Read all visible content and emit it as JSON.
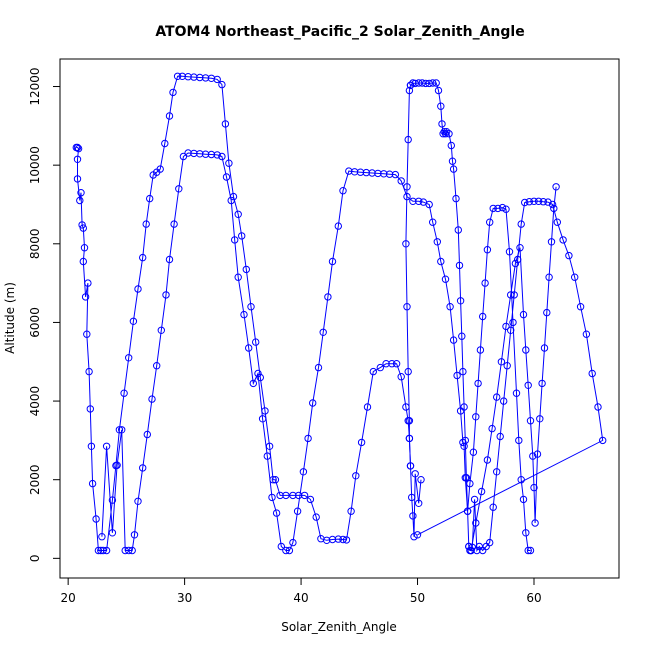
{
  "chart_data": {
    "type": "line",
    "title": "ATOM4 Northeast_Pacific_2 Solar_Zenith_Angle",
    "xlabel": "Solar_Zenith_Angle",
    "ylabel": "Altitude (m)",
    "xlim": [
      19.3,
      67.3
    ],
    "ylim": [
      -500,
      12700
    ],
    "xticks": [
      20,
      30,
      40,
      50,
      60
    ],
    "yticks": [
      0,
      2000,
      4000,
      6000,
      8000,
      10000,
      12000
    ],
    "grid": false,
    "colors": {
      "series": "#0000ff",
      "frame": "#000000"
    },
    "series": [
      {
        "values": [
          [
            20.7,
            10450
          ],
          [
            20.8,
            10450
          ],
          [
            20.9,
            10420
          ],
          [
            20.8,
            10150
          ],
          [
            20.8,
            9650
          ],
          [
            21.0,
            9100
          ],
          [
            21.1,
            9300
          ],
          [
            21.2,
            8480
          ],
          [
            21.3,
            8400
          ],
          [
            21.4,
            7900
          ],
          [
            21.3,
            7550
          ],
          [
            21.5,
            6650
          ],
          [
            21.7,
            7000
          ],
          [
            21.6,
            5700
          ],
          [
            21.8,
            4750
          ],
          [
            21.9,
            3800
          ],
          [
            22.0,
            2850
          ],
          [
            22.1,
            1900
          ],
          [
            22.4,
            1000
          ],
          [
            22.6,
            200
          ],
          [
            22.8,
            200
          ],
          [
            23.0,
            200
          ],
          [
            23.3,
            200
          ],
          [
            23.8,
            1480
          ],
          [
            24.1,
            2360
          ],
          [
            24.4,
            3270
          ],
          [
            24.8,
            4200
          ],
          [
            25.2,
            5100
          ],
          [
            25.6,
            6030
          ],
          [
            26.0,
            6850
          ],
          [
            26.4,
            7650
          ],
          [
            26.7,
            8500
          ],
          [
            27.0,
            9150
          ],
          [
            27.3,
            9750
          ],
          [
            27.6,
            9820
          ],
          [
            27.9,
            9900
          ],
          [
            28.3,
            10550
          ],
          [
            28.7,
            11250
          ],
          [
            29.0,
            11850
          ],
          [
            29.4,
            12260
          ],
          [
            29.8,
            12260
          ],
          [
            30.3,
            12250
          ],
          [
            30.8,
            12240
          ],
          [
            31.3,
            12230
          ],
          [
            31.8,
            12220
          ],
          [
            32.3,
            12210
          ],
          [
            32.8,
            12180
          ],
          [
            33.2,
            12050
          ],
          [
            33.5,
            11050
          ],
          [
            33.8,
            10050
          ],
          [
            34.2,
            9200
          ],
          [
            34.6,
            8750
          ],
          [
            34.9,
            8200
          ],
          [
            35.3,
            7350
          ],
          [
            35.7,
            6400
          ],
          [
            36.1,
            5500
          ],
          [
            36.5,
            4600
          ],
          [
            36.9,
            3750
          ],
          [
            37.3,
            2850
          ],
          [
            37.6,
            2000
          ],
          [
            37.8,
            2000
          ],
          [
            38.2,
            1600
          ],
          [
            38.7,
            1600
          ],
          [
            39.3,
            1600
          ],
          [
            39.8,
            1600
          ],
          [
            40.3,
            1600
          ],
          [
            40.8,
            1500
          ],
          [
            41.3,
            1050
          ],
          [
            41.7,
            500
          ],
          [
            42.2,
            460
          ],
          [
            42.7,
            480
          ],
          [
            43.2,
            490
          ],
          [
            43.6,
            480
          ],
          [
            43.9,
            470
          ],
          [
            44.3,
            1200
          ],
          [
            44.7,
            2100
          ],
          [
            45.2,
            2950
          ],
          [
            45.7,
            3850
          ],
          [
            46.2,
            4750
          ],
          [
            46.8,
            4850
          ],
          [
            47.3,
            4950
          ],
          [
            47.8,
            4950
          ],
          [
            48.2,
            4950
          ],
          [
            48.6,
            4620
          ],
          [
            49.0,
            3850
          ],
          [
            49.2,
            3500
          ],
          [
            49.3,
            3050
          ],
          [
            49.4,
            2350
          ],
          [
            49.5,
            1550
          ],
          [
            49.6,
            1080
          ],
          [
            49.7,
            550
          ],
          [
            49.8,
            2150
          ],
          [
            50.1,
            1400
          ],
          [
            50.3,
            2000
          ]
        ]
      },
      {
        "values": [
          [
            22.9,
            550
          ],
          [
            23.3,
            2850
          ],
          [
            23.8,
            650
          ],
          [
            24.2,
            2370
          ],
          [
            24.6,
            3270
          ],
          [
            24.9,
            200
          ],
          [
            25.2,
            200
          ],
          [
            25.5,
            200
          ],
          [
            25.7,
            600
          ],
          [
            26.0,
            1450
          ],
          [
            26.4,
            2300
          ],
          [
            26.8,
            3150
          ],
          [
            27.2,
            4050
          ],
          [
            27.6,
            4900
          ],
          [
            28.0,
            5800
          ],
          [
            28.4,
            6700
          ],
          [
            28.7,
            7600
          ],
          [
            29.1,
            8500
          ],
          [
            29.5,
            9400
          ],
          [
            29.9,
            10220
          ],
          [
            30.3,
            10310
          ],
          [
            30.8,
            10300
          ],
          [
            31.3,
            10290
          ],
          [
            31.8,
            10280
          ],
          [
            32.3,
            10270
          ],
          [
            32.8,
            10260
          ],
          [
            33.2,
            10220
          ],
          [
            33.6,
            9700
          ],
          [
            34.0,
            9100
          ],
          [
            34.3,
            8100
          ],
          [
            34.6,
            7150
          ],
          [
            35.1,
            6200
          ],
          [
            35.5,
            5350
          ],
          [
            35.9,
            4450
          ],
          [
            36.3,
            4700
          ],
          [
            36.7,
            3550
          ],
          [
            37.1,
            2600
          ],
          [
            37.5,
            1550
          ],
          [
            37.9,
            1150
          ],
          [
            38.3,
            300
          ],
          [
            38.7,
            200
          ],
          [
            39.0,
            200
          ],
          [
            39.3,
            400
          ],
          [
            39.7,
            1200
          ],
          [
            40.2,
            2200
          ],
          [
            40.6,
            3050
          ],
          [
            41.0,
            3950
          ],
          [
            41.5,
            4850
          ],
          [
            41.9,
            5750
          ],
          [
            42.3,
            6650
          ],
          [
            42.7,
            7550
          ],
          [
            43.2,
            8450
          ],
          [
            43.6,
            9350
          ],
          [
            44.1,
            9850
          ],
          [
            44.6,
            9830
          ],
          [
            45.1,
            9820
          ],
          [
            45.6,
            9810
          ],
          [
            46.1,
            9800
          ],
          [
            46.6,
            9790
          ],
          [
            47.1,
            9780
          ],
          [
            47.6,
            9770
          ],
          [
            48.1,
            9760
          ],
          [
            48.6,
            9600
          ],
          [
            49.1,
            9200
          ],
          [
            49.6,
            9080
          ],
          [
            50.1,
            9080
          ],
          [
            50.5,
            9060
          ],
          [
            51.0,
            9000
          ],
          [
            51.3,
            8550
          ],
          [
            51.7,
            8050
          ],
          [
            52.0,
            7550
          ],
          [
            52.4,
            7100
          ],
          [
            52.8,
            6400
          ],
          [
            53.1,
            5550
          ],
          [
            53.4,
            4650
          ],
          [
            53.7,
            3750
          ],
          [
            53.9,
            2950
          ],
          [
            54.0,
            2850
          ],
          [
            54.1,
            2050
          ],
          [
            54.3,
            1200
          ],
          [
            54.5,
            1900
          ],
          [
            54.8,
            2700
          ],
          [
            55.0,
            3600
          ],
          [
            55.2,
            4450
          ],
          [
            55.4,
            5300
          ],
          [
            55.6,
            6150
          ],
          [
            55.8,
            7000
          ],
          [
            56.0,
            7850
          ],
          [
            56.2,
            8550
          ],
          [
            56.5,
            8900
          ],
          [
            56.9,
            8900
          ],
          [
            57.3,
            8920
          ],
          [
            57.6,
            8880
          ],
          [
            57.9,
            7800
          ],
          [
            58.2,
            6000
          ],
          [
            58.5,
            4200
          ],
          [
            58.7,
            3000
          ],
          [
            58.9,
            2000
          ],
          [
            59.1,
            1500
          ],
          [
            59.3,
            650
          ],
          [
            59.5,
            200
          ],
          [
            59.7,
            200
          ]
        ]
      },
      {
        "values": [
          [
            49.4,
            12030
          ],
          [
            49.6,
            12090
          ],
          [
            49.8,
            12080
          ],
          [
            50.1,
            12090
          ],
          [
            50.4,
            12090
          ],
          [
            50.7,
            12080
          ],
          [
            51.0,
            12080
          ],
          [
            51.3,
            12090
          ],
          [
            51.6,
            12090
          ],
          [
            51.8,
            11900
          ],
          [
            52.0,
            11500
          ],
          [
            52.1,
            11050
          ],
          [
            52.2,
            10800
          ],
          [
            52.3,
            10850
          ],
          [
            52.4,
            10800
          ],
          [
            52.5,
            10850
          ],
          [
            52.7,
            10800
          ],
          [
            52.9,
            10500
          ],
          [
            53.0,
            10100
          ],
          [
            53.1,
            9900
          ],
          [
            53.3,
            9150
          ],
          [
            53.5,
            8350
          ],
          [
            53.6,
            7450
          ],
          [
            53.7,
            6550
          ],
          [
            53.8,
            5650
          ],
          [
            53.9,
            4750
          ],
          [
            54.0,
            3850
          ],
          [
            54.1,
            3000
          ],
          [
            54.2,
            2050
          ],
          [
            54.3,
            1200
          ],
          [
            54.4,
            300
          ],
          [
            54.5,
            200
          ],
          [
            54.6,
            200
          ],
          [
            54.7,
            280
          ],
          [
            54.9,
            1500
          ],
          [
            55.1,
            200
          ],
          [
            55.3,
            300
          ],
          [
            55.6,
            200
          ],
          [
            55.9,
            300
          ],
          [
            56.2,
            400
          ],
          [
            56.5,
            1300
          ],
          [
            56.8,
            2200
          ],
          [
            57.1,
            3100
          ],
          [
            57.4,
            4000
          ],
          [
            57.7,
            4900
          ],
          [
            58.0,
            5800
          ],
          [
            58.3,
            6700
          ],
          [
            58.6,
            7600
          ],
          [
            58.9,
            8500
          ],
          [
            59.2,
            9050
          ],
          [
            59.6,
            9070
          ],
          [
            60.0,
            9080
          ],
          [
            60.4,
            9080
          ],
          [
            60.8,
            9070
          ],
          [
            61.2,
            9060
          ],
          [
            61.6,
            9000
          ],
          [
            62.0,
            8550
          ],
          [
            62.5,
            8100
          ],
          [
            63.0,
            7700
          ],
          [
            63.5,
            7150
          ],
          [
            64.0,
            6400
          ],
          [
            64.5,
            5700
          ],
          [
            65.0,
            4700
          ],
          [
            65.5,
            3850
          ],
          [
            65.9,
            3000
          ],
          [
            50.0,
            600
          ]
        ]
      },
      {
        "values": [
          [
            49.4,
            12030
          ],
          [
            49.3,
            11900
          ],
          [
            49.2,
            10650
          ],
          [
            49.1,
            9450
          ],
          [
            49.0,
            8000
          ],
          [
            49.1,
            6400
          ],
          [
            49.2,
            4750
          ],
          [
            49.3,
            3500
          ],
          [
            49.3,
            3050
          ],
          [
            49.4,
            2350
          ]
        ]
      },
      {
        "values": [
          [
            54.4,
            300
          ],
          [
            54.6,
            200
          ],
          [
            55.0,
            900
          ],
          [
            55.5,
            1700
          ],
          [
            56.0,
            2500
          ],
          [
            56.4,
            3300
          ],
          [
            56.8,
            4100
          ],
          [
            57.2,
            5000
          ],
          [
            57.6,
            5900
          ],
          [
            58.0,
            6700
          ],
          [
            58.4,
            7500
          ],
          [
            58.8,
            7900
          ],
          [
            59.1,
            6200
          ],
          [
            59.3,
            5300
          ],
          [
            59.5,
            4400
          ],
          [
            59.7,
            3500
          ],
          [
            59.9,
            2600
          ],
          [
            60.0,
            1800
          ],
          [
            60.1,
            900
          ],
          [
            60.3,
            2650
          ],
          [
            60.5,
            3550
          ],
          [
            60.7,
            4450
          ],
          [
            60.9,
            5350
          ],
          [
            61.1,
            6250
          ],
          [
            61.3,
            7150
          ],
          [
            61.5,
            8050
          ],
          [
            61.7,
            8900
          ],
          [
            61.9,
            9450
          ]
        ]
      }
    ]
  }
}
